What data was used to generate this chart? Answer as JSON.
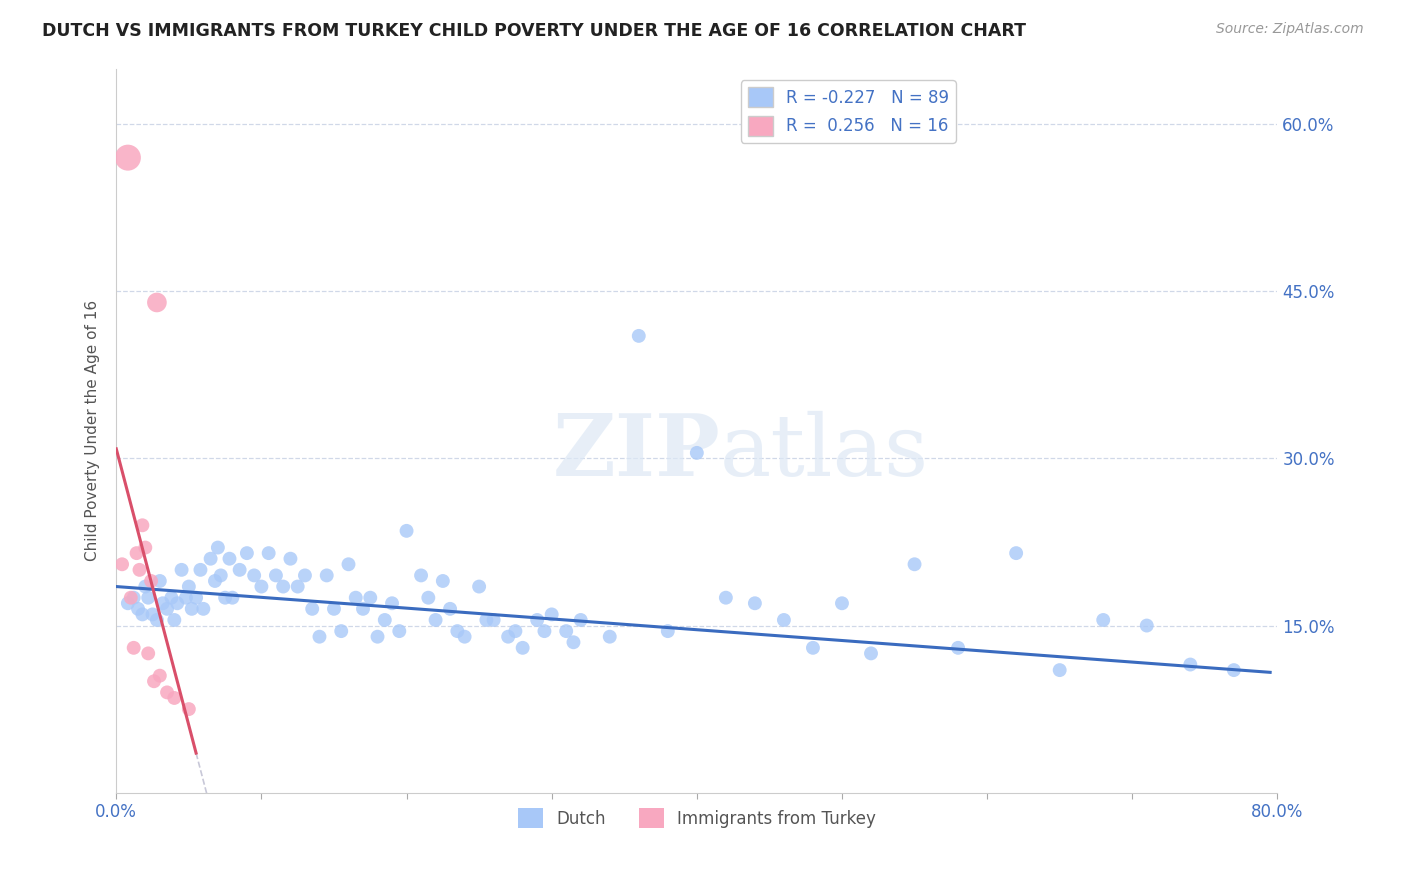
{
  "title": "DUTCH VS IMMIGRANTS FROM TURKEY CHILD POVERTY UNDER THE AGE OF 16 CORRELATION CHART",
  "source": "Source: ZipAtlas.com",
  "ylabel": "Child Poverty Under the Age of 16",
  "xlim": [
    0.0,
    0.8
  ],
  "ylim": [
    0.0,
    0.65
  ],
  "yticks": [
    0.15,
    0.3,
    0.45,
    0.6
  ],
  "ytick_labels": [
    "15.0%",
    "30.0%",
    "45.0%",
    "60.0%"
  ],
  "dutch_color": "#a8c8f8",
  "turkey_color": "#f8a8c0",
  "dutch_R": -0.227,
  "dutch_N": 89,
  "turkey_R": 0.256,
  "turkey_N": 16,
  "trend_color_dutch": "#3a6bbf",
  "trend_color_turkey": "#d94f6a",
  "background_color": "#ffffff",
  "grid_color": "#d0d8e8",
  "watermark_zip": "ZIP",
  "watermark_atlas": "atlas",
  "dutch_x": [
    0.008,
    0.012,
    0.015,
    0.018,
    0.02,
    0.022,
    0.025,
    0.028,
    0.03,
    0.032,
    0.035,
    0.038,
    0.04,
    0.042,
    0.045,
    0.048,
    0.05,
    0.052,
    0.055,
    0.058,
    0.06,
    0.065,
    0.068,
    0.07,
    0.072,
    0.075,
    0.078,
    0.08,
    0.085,
    0.09,
    0.095,
    0.1,
    0.105,
    0.11,
    0.115,
    0.12,
    0.125,
    0.13,
    0.135,
    0.14,
    0.145,
    0.15,
    0.155,
    0.16,
    0.165,
    0.17,
    0.175,
    0.18,
    0.185,
    0.19,
    0.195,
    0.2,
    0.21,
    0.215,
    0.22,
    0.225,
    0.23,
    0.235,
    0.24,
    0.25,
    0.255,
    0.26,
    0.27,
    0.275,
    0.28,
    0.29,
    0.295,
    0.3,
    0.31,
    0.315,
    0.32,
    0.34,
    0.36,
    0.38,
    0.4,
    0.42,
    0.44,
    0.46,
    0.48,
    0.5,
    0.52,
    0.55,
    0.58,
    0.62,
    0.65,
    0.68,
    0.71,
    0.74,
    0.77
  ],
  "dutch_y": [
    0.17,
    0.175,
    0.165,
    0.16,
    0.185,
    0.175,
    0.16,
    0.155,
    0.19,
    0.17,
    0.165,
    0.175,
    0.155,
    0.17,
    0.2,
    0.175,
    0.185,
    0.165,
    0.175,
    0.2,
    0.165,
    0.21,
    0.19,
    0.22,
    0.195,
    0.175,
    0.21,
    0.175,
    0.2,
    0.215,
    0.195,
    0.185,
    0.215,
    0.195,
    0.185,
    0.21,
    0.185,
    0.195,
    0.165,
    0.14,
    0.195,
    0.165,
    0.145,
    0.205,
    0.175,
    0.165,
    0.175,
    0.14,
    0.155,
    0.17,
    0.145,
    0.235,
    0.195,
    0.175,
    0.155,
    0.19,
    0.165,
    0.145,
    0.14,
    0.185,
    0.155,
    0.155,
    0.14,
    0.145,
    0.13,
    0.155,
    0.145,
    0.16,
    0.145,
    0.135,
    0.155,
    0.14,
    0.41,
    0.145,
    0.305,
    0.175,
    0.17,
    0.155,
    0.13,
    0.17,
    0.125,
    0.205,
    0.13,
    0.215,
    0.11,
    0.155,
    0.15,
    0.115,
    0.11
  ],
  "turkey_x": [
    0.004,
    0.008,
    0.01,
    0.012,
    0.014,
    0.016,
    0.018,
    0.02,
    0.022,
    0.024,
    0.026,
    0.028,
    0.03,
    0.035,
    0.04,
    0.05
  ],
  "turkey_y": [
    0.205,
    0.57,
    0.175,
    0.13,
    0.215,
    0.2,
    0.24,
    0.22,
    0.125,
    0.19,
    0.1,
    0.44,
    0.105,
    0.09,
    0.085,
    0.075
  ],
  "turkey_trend_x0": 0.0,
  "turkey_trend_x1": 0.055,
  "turkey_trend_dash_x0": 0.055,
  "turkey_trend_dash_x1": 0.42,
  "dutch_trend_x0": 0.0,
  "dutch_trend_x1": 0.795,
  "dutch_trend_y0": 0.185,
  "dutch_trend_y1": 0.108
}
